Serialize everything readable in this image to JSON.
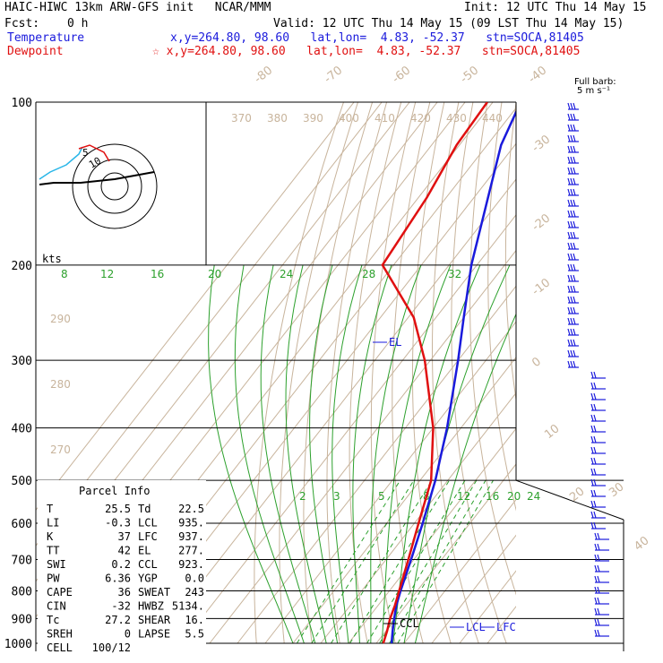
{
  "header": {
    "title": "HAIC-HIWC 13km ARW-GFS init   NCAR/MMM",
    "init": "Init: 12 UTC Thu 14 May 15",
    "fcst_label": "Fcst:",
    "fcst_value": "0 h",
    "valid": "Valid: 12 UTC Thu 14 May 15 (09 LST Thu 14 May 15)",
    "temperature_label": "Temperature",
    "temperature_info": "x,y=264.80, 98.60   lat,lon=  4.83, -52.37   stn=SOCA,81405",
    "dewpoint_label": "Dewpoint",
    "dewpoint_info": "☆ x,y=264.80, 98.60   lat,lon=  4.83, -52.37   stn=SOCA,81405"
  },
  "colors": {
    "temperature": "#1a1adc",
    "dewpoint": "#e01010",
    "isotherm": "#c8b49c",
    "mixing_ratio": "#2ca02c",
    "isobar": "#000000",
    "barb": "#1a1adc"
  },
  "barb_legend": {
    "line1": "Full barb:",
    "line2": "5 m s⁻¹"
  },
  "hodograph": {
    "units": "kts",
    "labels": [
      "5",
      "10"
    ]
  },
  "parcel_info": {
    "title": "Parcel Info",
    "rows": [
      {
        "l": "T",
        "lv": "25.5",
        "r": "Td",
        "rv": "22.5"
      },
      {
        "l": "LI",
        "lv": "-0.3",
        "r": "LCL",
        "rv": "935."
      },
      {
        "l": "K",
        "lv": "37",
        "r": "LFC",
        "rv": "937."
      },
      {
        "l": "TT",
        "lv": "42",
        "r": "EL",
        "rv": "277."
      },
      {
        "l": "SWI",
        "lv": "0.2",
        "r": "CCL",
        "rv": "923."
      },
      {
        "l": "PW",
        "lv": "6.36",
        "r": "YGP",
        "rv": "0.0"
      },
      {
        "l": "CAPE",
        "lv": "36",
        "r": "SWEAT",
        "rv": "243"
      },
      {
        "l": "CIN",
        "lv": "-32",
        "r": "HWBZ",
        "rv": "5134."
      },
      {
        "l": "Tc",
        "lv": "27.2",
        "r": "SHEAR",
        "rv": "16."
      },
      {
        "l": "SREH",
        "lv": "0",
        "r": "LAPSE",
        "rv": "5.5"
      },
      {
        "l": "CELL",
        "lv": "100/12",
        "r": "",
        "rv": ""
      }
    ]
  },
  "chart_data": {
    "type": "line",
    "subtype": "skew-T log-P",
    "y_axis": {
      "label": "",
      "scale": "log",
      "ticks": [
        100,
        200,
        300,
        400,
        500,
        600,
        700,
        800,
        900,
        1000
      ],
      "range": [
        1000,
        100
      ]
    },
    "isotherm_labels": [
      -80,
      -70,
      -60,
      -50,
      -40,
      -30,
      -20,
      -10,
      0,
      10,
      20,
      30,
      40
    ],
    "theta_labels": [
      370,
      380,
      390,
      400,
      410,
      420,
      430,
      440,
      290,
      280,
      270
    ],
    "mixing_ratio_labels_upper": [
      8,
      12,
      16,
      20,
      24,
      28,
      32
    ],
    "mixing_ratio_labels_lower": [
      2,
      3,
      5,
      8,
      12,
      16,
      20,
      24
    ],
    "series": [
      {
        "name": "Temperature",
        "points": [
          [
            1000,
            25.5
          ],
          [
            950,
            22.5
          ],
          [
            900,
            19.5
          ],
          [
            850,
            16.5
          ],
          [
            800,
            14
          ],
          [
            700,
            9
          ],
          [
            600,
            3
          ],
          [
            500,
            -4.5
          ],
          [
            400,
            -15
          ],
          [
            300,
            -30
          ],
          [
            250,
            -40
          ],
          [
            200,
            -52
          ],
          [
            150,
            -65
          ],
          [
            120,
            -75
          ],
          [
            100,
            -80
          ]
        ]
      },
      {
        "name": "Dewpoint",
        "points": [
          [
            1000,
            22.5
          ],
          [
            950,
            20.5
          ],
          [
            900,
            18
          ],
          [
            850,
            16
          ],
          [
            800,
            13.5
          ],
          [
            700,
            8
          ],
          [
            600,
            1.5
          ],
          [
            500,
            -6
          ],
          [
            400,
            -20
          ],
          [
            300,
            -42
          ],
          [
            250,
            -58
          ],
          [
            200,
            -84
          ],
          [
            150,
            -87
          ],
          [
            120,
            -91
          ],
          [
            100,
            -92
          ]
        ]
      }
    ],
    "annotations": [
      {
        "text": "EL",
        "pressure": 277
      },
      {
        "text": "CCL",
        "pressure": 923
      },
      {
        "text": "LCL",
        "pressure": 935
      },
      {
        "text": "LFC",
        "pressure": 937
      }
    ]
  }
}
